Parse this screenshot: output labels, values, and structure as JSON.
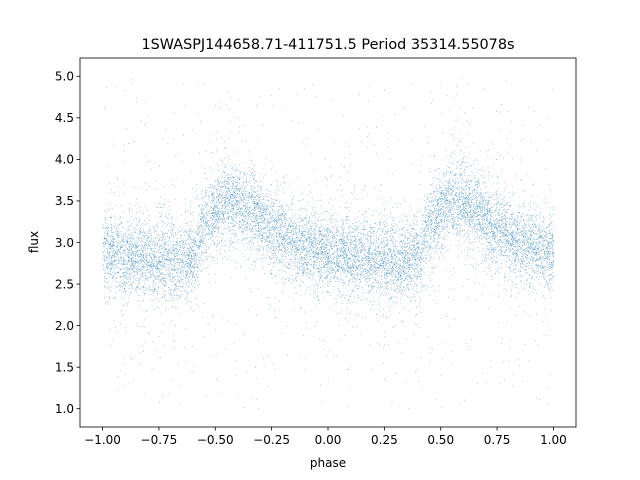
{
  "chart_data": {
    "type": "scatter",
    "title": "1SWASPJ144658.71-411751.5 Period 35314.55078s",
    "xlabel": "phase",
    "ylabel": "flux",
    "xlim": [
      -1.1,
      1.1
    ],
    "ylim": [
      0.78,
      5.22
    ],
    "xticks": [
      -1.0,
      -0.75,
      -0.5,
      -0.25,
      0.0,
      0.25,
      0.5,
      0.75,
      1.0
    ],
    "xtick_labels": [
      "−1.00",
      "−0.75",
      "−0.50",
      "−0.25",
      "0.00",
      "0.25",
      "0.50",
      "0.75",
      "1.00"
    ],
    "yticks": [
      1.0,
      1.5,
      2.0,
      2.5,
      3.0,
      3.5,
      4.0,
      4.5,
      5.0
    ],
    "ytick_labels": [
      "1.0",
      "1.5",
      "2.0",
      "2.5",
      "3.0",
      "3.5",
      "4.0",
      "4.5",
      "5.0"
    ],
    "grid": false,
    "legend": "none",
    "marker_color": "#1f77b4",
    "series": [
      {
        "phase_range": [
          -1.0,
          1.0
        ],
        "mean_curve": {
          "phase": [
            -1.0,
            -0.85,
            -0.7,
            -0.6,
            -0.55,
            -0.45,
            -0.35,
            -0.25,
            -0.1,
            0.0,
            0.15,
            0.3,
            0.4,
            0.45,
            0.55,
            0.65,
            0.75,
            0.9,
            1.0
          ],
          "flux": [
            2.88,
            2.83,
            2.78,
            2.82,
            3.25,
            3.5,
            3.4,
            3.15,
            2.95,
            2.88,
            2.83,
            2.78,
            2.82,
            3.25,
            3.5,
            3.4,
            3.15,
            2.95,
            2.88
          ]
        },
        "scatter_sigma": 0.22,
        "outlier_flux_range": [
          1.0,
          5.0
        ]
      }
    ]
  }
}
